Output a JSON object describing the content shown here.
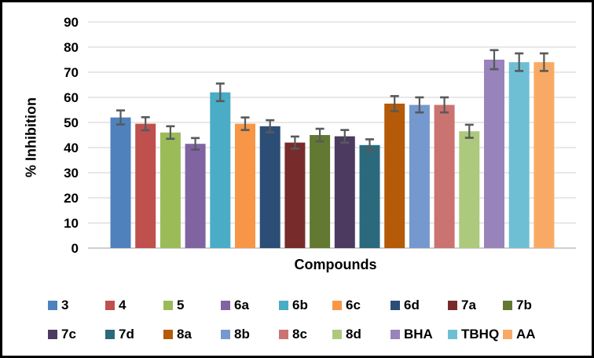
{
  "chart_data": {
    "type": "bar",
    "title": "",
    "xlabel": "Compounds",
    "ylabel": "% Inhibition",
    "ylim": [
      0,
      90
    ],
    "ytick_step": 10,
    "yticks": [
      0,
      10,
      20,
      30,
      40,
      50,
      60,
      70,
      80,
      90
    ],
    "grid": true,
    "legend_position": "bottom",
    "legend_rows": 2,
    "categories": [
      "3",
      "4",
      "5",
      "6a",
      "6b",
      "6c",
      "6d",
      "7a",
      "7b",
      "7c",
      "7d",
      "8a",
      "8b",
      "8c",
      "8d",
      "BHA",
      "TBHQ",
      "AA"
    ],
    "values": [
      52,
      49.5,
      46,
      41.5,
      62,
      49.5,
      48.5,
      42,
      45,
      44.5,
      41,
      57.5,
      57,
      57,
      46.5,
      75,
      74,
      74
    ],
    "errors": [
      2.8,
      2.6,
      2.5,
      2.3,
      3.5,
      2.5,
      2.4,
      2.4,
      2.5,
      2.5,
      2.3,
      3.0,
      3.0,
      3.0,
      2.6,
      3.8,
      3.5,
      3.5
    ],
    "colors": [
      "#4F81BD",
      "#C0504D",
      "#9BBB59",
      "#8064A2",
      "#4BACC6",
      "#F79646",
      "#2C4D75",
      "#772C2B",
      "#637831",
      "#4C3A60",
      "#2A6A7C",
      "#B55A08",
      "#7599CE",
      "#CB7371",
      "#ADC97D",
      "#9883BB",
      "#6FBFD4",
      "#F8AA64"
    ]
  },
  "styles": {
    "background": "#FFFFFF",
    "frame_border": "#000000",
    "gridline_color": "#D9D9D9",
    "axis_line_color": "#BFBFBF",
    "error_bar_color": "#58595B",
    "text_color": "#000000"
  }
}
